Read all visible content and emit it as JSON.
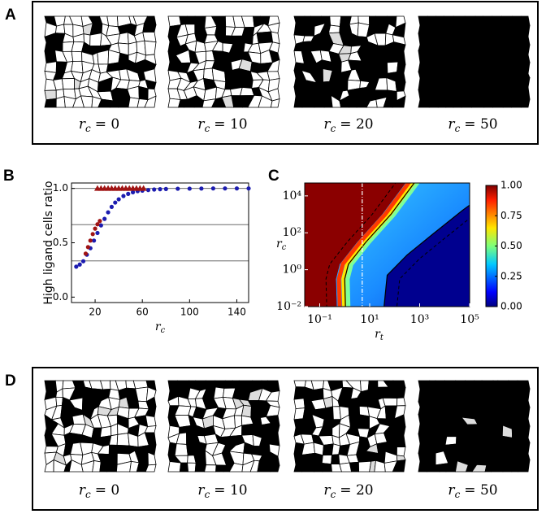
{
  "panels": {
    "a": {
      "label": "A",
      "captions": [
        {
          "symbol": "r",
          "subscript": "c",
          "text": "= 0"
        },
        {
          "symbol": "r",
          "subscript": "c",
          "text": "= 10"
        },
        {
          "symbol": "r",
          "subscript": "c",
          "text": "= 20"
        },
        {
          "symbol": "r",
          "subscript": "c",
          "text": "= 50"
        }
      ]
    },
    "d": {
      "label": "D",
      "captions": [
        {
          "symbol": "r",
          "subscript": "c",
          "text": "= 0"
        },
        {
          "symbol": "r",
          "subscript": "c",
          "text": "= 10"
        },
        {
          "symbol": "r",
          "subscript": "c",
          "text": "= 20"
        },
        {
          "symbol": "r",
          "subscript": "c",
          "text": "= 50"
        }
      ]
    }
  },
  "chart_data": [
    {
      "type": "scatter",
      "panel_label": "B",
      "y_label": "High ligand cells ratio",
      "x_label": {
        "symbol": "r",
        "subscript": "c"
      },
      "xlim": [
        0,
        150
      ],
      "ylim": [
        -0.05,
        1.05
      ],
      "xticks": [
        20,
        60,
        100,
        140
      ],
      "yticks": [
        {
          "value": 0,
          "label": "0.0"
        },
        {
          "value": 0.5,
          "label": "0.5"
        },
        {
          "value": 1,
          "label": "1.0"
        }
      ],
      "reference_lines": [
        0.333,
        0.667,
        1.0
      ],
      "series": [
        {
          "marker": "circle",
          "color": "#1c1cb0",
          "x": [
            4,
            7,
            10,
            13,
            16,
            19,
            22,
            25,
            28,
            31,
            34,
            37,
            40,
            44,
            48,
            52,
            56,
            60,
            65,
            70,
            75,
            80,
            90,
            100,
            110,
            120,
            130,
            140,
            150
          ],
          "values": [
            0.28,
            0.3,
            0.33,
            0.39,
            0.45,
            0.52,
            0.59,
            0.66,
            0.72,
            0.78,
            0.83,
            0.87,
            0.9,
            0.93,
            0.95,
            0.965,
            0.975,
            0.98,
            0.985,
            0.99,
            0.993,
            0.995,
            0.997,
            0.998,
            0.999,
            1.0,
            1.0,
            1.0,
            1.0
          ]
        },
        {
          "marker": "circle",
          "color": "#a01414",
          "x": [
            12,
            14,
            16,
            18,
            20,
            22,
            24
          ],
          "values": [
            0.4,
            0.46,
            0.52,
            0.58,
            0.63,
            0.67,
            0.7
          ]
        },
        {
          "marker": "triangle",
          "color": "#a01414",
          "x": [
            22,
            25,
            28,
            31,
            34,
            37,
            40,
            43,
            46,
            49,
            52,
            55,
            58,
            61
          ],
          "values": [
            1,
            1,
            1,
            1,
            1,
            1,
            1,
            1,
            1,
            1,
            1,
            1,
            1,
            1
          ]
        }
      ]
    },
    {
      "type": "heatmap",
      "panel_label": "C",
      "x_label": {
        "symbol": "r",
        "subscript": "t"
      },
      "y_label": {
        "symbol": "r",
        "subscript": "c"
      },
      "x_log": true,
      "y_log": true,
      "xlim": [
        0.025,
        100000
      ],
      "ylim": [
        0.01,
        50000
      ],
      "xticks": [
        {
          "value": 0.1,
          "label": "10⁻¹"
        },
        {
          "value": 10,
          "label": "10¹"
        },
        {
          "value": 1000,
          "label": "10³"
        },
        {
          "value": 100000,
          "label": "10⁵"
        }
      ],
      "yticks": [
        {
          "value": 0.01,
          "label": "10⁻²"
        },
        {
          "value": 1,
          "label": "10⁰"
        },
        {
          "value": 100,
          "label": "10²"
        },
        {
          "value": 10000,
          "label": "10⁴"
        }
      ],
      "colorbar": {
        "clim": [
          0,
          1
        ],
        "ticks": [
          {
            "value": 0,
            "label": "0.00"
          },
          {
            "value": 0.25,
            "label": "0.25"
          },
          {
            "value": 0.5,
            "label": "0.50"
          },
          {
            "value": 0.75,
            "label": "0.75"
          },
          {
            "value": 1,
            "label": "1.00"
          }
        ]
      }
    }
  ]
}
